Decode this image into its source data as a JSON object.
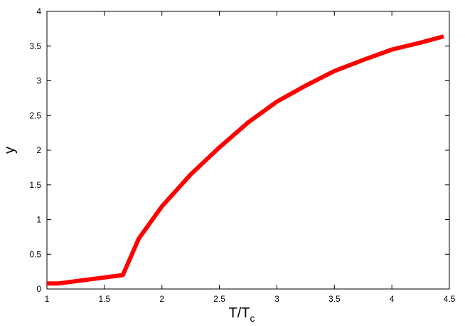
{
  "chart_data": {
    "type": "line",
    "x_label": "T/T",
    "x_label_subscript": "c",
    "y_label": "y",
    "series": [
      {
        "color": "#ff0000",
        "x": [
          1.0,
          1.1,
          1.66,
          1.8,
          2.0,
          2.25,
          2.5,
          2.75,
          3.0,
          3.25,
          3.5,
          3.75,
          4.0,
          4.25,
          4.45
        ],
        "values": [
          0.08,
          0.08,
          0.2,
          0.73,
          1.19,
          1.65,
          2.04,
          2.4,
          2.7,
          2.93,
          3.14,
          3.3,
          3.45,
          3.55,
          3.64
        ]
      }
    ],
    "xlim": [
      1,
      4.5
    ],
    "xticks": [
      1,
      1.5,
      2,
      2.5,
      3,
      3.5,
      4,
      4.5
    ],
    "ylim": [
      0,
      4
    ],
    "yticks": [
      0,
      0.5,
      1,
      1.5,
      2,
      2.5,
      3,
      3.5,
      4
    ]
  }
}
